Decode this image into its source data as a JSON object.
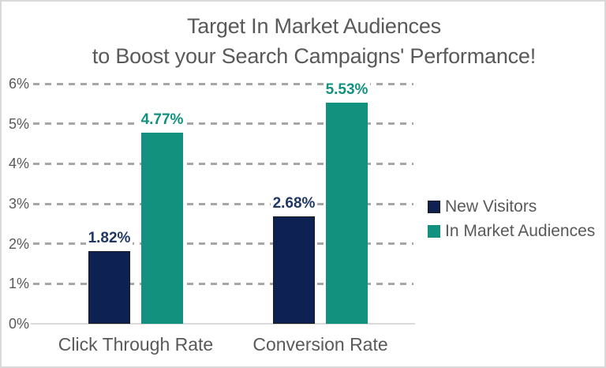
{
  "title": {
    "line1": "Target In Market Audiences",
    "line2": "to Boost your Search Campaigns' Performance!"
  },
  "chart_data": {
    "type": "bar",
    "title": "Target In Market Audiences to Boost your Search Campaigns' Performance!",
    "categories": [
      "Click Through Rate",
      "Conversion Rate"
    ],
    "series": [
      {
        "name": "New Visitors",
        "values": [
          1.82,
          2.68
        ],
        "data_labels": [
          "1.82%",
          "2.68%"
        ],
        "color": "#0d2152",
        "outline": "#1a1a1a",
        "label_color": "#1f3864"
      },
      {
        "name": "In Market Audiences",
        "values": [
          4.77,
          5.53
        ],
        "data_labels": [
          "4.77%",
          "5.53%"
        ],
        "color": "#12917e",
        "outline": "",
        "label_color": "#12917e"
      }
    ],
    "xlabel": "",
    "ylabel": "",
    "ylim": [
      0,
      6
    ],
    "y_ticks": [
      {
        "value": 0,
        "label": "0%"
      },
      {
        "value": 1,
        "label": "1%"
      },
      {
        "value": 2,
        "label": "2%"
      },
      {
        "value": 3,
        "label": "3%"
      },
      {
        "value": 4,
        "label": "4%"
      },
      {
        "value": 5,
        "label": "5%"
      },
      {
        "value": 6,
        "label": "6%"
      }
    ],
    "grid": "horizontal-dashed",
    "legend_position": "right"
  },
  "colors": {
    "title_text": "#595959",
    "axis_text": "#595959",
    "gridline": "#a6a6a6",
    "axis_line": "#d9d9d9",
    "frame_border": "#d9d9d9",
    "background": "#ffffff"
  }
}
